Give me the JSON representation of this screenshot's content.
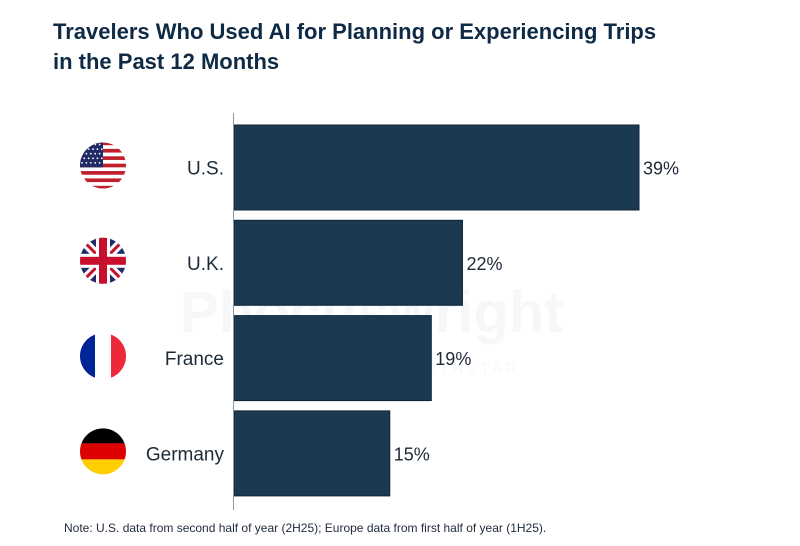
{
  "chart_data": {
    "type": "bar",
    "orientation": "horizontal",
    "title": "Travelers Who Used AI for Planning or Experiencing Trips in the Past 12 Months",
    "title_lines": [
      "Travelers Who Used AI for Planning or Experiencing Trips",
      "in the Past 12 Months"
    ],
    "categories": [
      "U.S.",
      "U.K.",
      "France",
      "Germany"
    ],
    "values": [
      39,
      22,
      19,
      15
    ],
    "value_labels": [
      "39%",
      "22%",
      "19%",
      "15%"
    ],
    "unit": "%",
    "xlabel": "",
    "ylabel": "",
    "xlim": [
      0,
      39
    ],
    "grid": false,
    "bar_color": "#1b3a52",
    "flags": [
      "us-flag",
      "uk-flag",
      "france-flag",
      "germany-flag"
    ],
    "note": "Note: U.S. data from second half of year (2H25); Europe data from first half of year (1H25).",
    "watermark": "Phocuswright NORTHSTAR"
  }
}
